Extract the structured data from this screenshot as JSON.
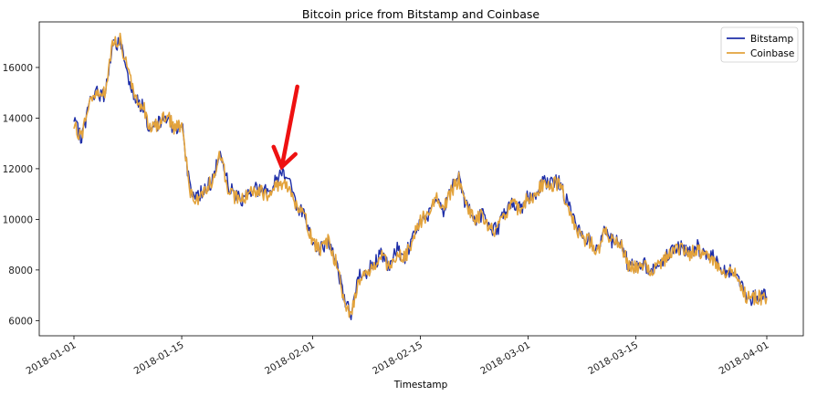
{
  "chart_data": {
    "type": "line",
    "title": "Bitcoin price from Bitstamp and Coinbase",
    "xlabel": "Timestamp",
    "ylabel": "",
    "xlim": [
      "2018-01-01",
      "2018-04-01"
    ],
    "ylim": [
      5400,
      17800
    ],
    "y_ticks": [
      6000,
      8000,
      10000,
      12000,
      14000,
      16000
    ],
    "x_ticks": [
      "2018-01-01",
      "2018-01-15",
      "2018-02-01",
      "2018-02-15",
      "2018-03-01",
      "2018-03-15",
      "2018-04-01"
    ],
    "grid": false,
    "legend_position": "top-right",
    "annotation": {
      "type": "arrow",
      "color": "#ee1111",
      "points_to": {
        "x": "2018-01-28",
        "y": 12000
      }
    },
    "series": [
      {
        "name": "Bitstamp",
        "color": "#1f2fa8",
        "points": [
          [
            "2018-01-01",
            13800
          ],
          [
            "2018-01-02",
            13200
          ],
          [
            "2018-01-03",
            14600
          ],
          [
            "2018-01-04",
            15000
          ],
          [
            "2018-01-05",
            14900
          ],
          [
            "2018-01-06",
            16800
          ],
          [
            "2018-01-07",
            17050
          ],
          [
            "2018-01-08",
            15700
          ],
          [
            "2018-01-09",
            14800
          ],
          [
            "2018-01-10",
            14400
          ],
          [
            "2018-01-11",
            13400
          ],
          [
            "2018-01-12",
            13800
          ],
          [
            "2018-01-13",
            14100
          ],
          [
            "2018-01-14",
            13600
          ],
          [
            "2018-01-15",
            13800
          ],
          [
            "2018-01-16",
            11300
          ],
          [
            "2018-01-17",
            10800
          ],
          [
            "2018-01-18",
            11300
          ],
          [
            "2018-01-19",
            11500
          ],
          [
            "2018-01-20",
            12700
          ],
          [
            "2018-01-21",
            11400
          ],
          [
            "2018-01-22",
            10900
          ],
          [
            "2018-01-23",
            10800
          ],
          [
            "2018-01-24",
            11200
          ],
          [
            "2018-01-25",
            11200
          ],
          [
            "2018-01-26",
            11100
          ],
          [
            "2018-01-27",
            11400
          ],
          [
            "2018-01-28",
            11900
          ],
          [
            "2018-01-29",
            11600
          ],
          [
            "2018-01-30",
            10500
          ],
          [
            "2018-01-31",
            10150
          ],
          [
            "2018-02-01",
            9200
          ],
          [
            "2018-02-02",
            8800
          ],
          [
            "2018-02-03",
            9200
          ],
          [
            "2018-02-04",
            8400
          ],
          [
            "2018-02-05",
            7000
          ],
          [
            "2018-02-06",
            6200
          ],
          [
            "2018-02-07",
            7700
          ],
          [
            "2018-02-08",
            7900
          ],
          [
            "2018-02-09",
            8300
          ],
          [
            "2018-02-10",
            8600
          ],
          [
            "2018-02-11",
            8100
          ],
          [
            "2018-02-12",
            8800
          ],
          [
            "2018-02-13",
            8500
          ],
          [
            "2018-02-14",
            9300
          ],
          [
            "2018-02-15",
            10000
          ],
          [
            "2018-02-16",
            10200
          ],
          [
            "2018-02-17",
            11000
          ],
          [
            "2018-02-18",
            10400
          ],
          [
            "2018-02-19",
            11200
          ],
          [
            "2018-02-20",
            11600
          ],
          [
            "2018-02-21",
            10500
          ],
          [
            "2018-02-22",
            10000
          ],
          [
            "2018-02-23",
            10200
          ],
          [
            "2018-02-24",
            9700
          ],
          [
            "2018-02-25",
            9600
          ],
          [
            "2018-02-26",
            10300
          ],
          [
            "2018-02-27",
            10700
          ],
          [
            "2018-02-28",
            10400
          ],
          [
            "2018-03-01",
            10900
          ],
          [
            "2018-03-02",
            11000
          ],
          [
            "2018-03-03",
            11500
          ],
          [
            "2018-03-04",
            11400
          ],
          [
            "2018-03-05",
            11500
          ],
          [
            "2018-03-06",
            10700
          ],
          [
            "2018-03-07",
            9900
          ],
          [
            "2018-03-08",
            9300
          ],
          [
            "2018-03-09",
            9200
          ],
          [
            "2018-03-10",
            8800
          ],
          [
            "2018-03-11",
            9600
          ],
          [
            "2018-03-12",
            9100
          ],
          [
            "2018-03-13",
            9100
          ],
          [
            "2018-03-14",
            8200
          ],
          [
            "2018-03-15",
            8200
          ],
          [
            "2018-03-16",
            8300
          ],
          [
            "2018-03-17",
            7900
          ],
          [
            "2018-03-18",
            8200
          ],
          [
            "2018-03-19",
            8600
          ],
          [
            "2018-03-20",
            8900
          ],
          [
            "2018-03-21",
            8900
          ],
          [
            "2018-03-22",
            8700
          ],
          [
            "2018-03-23",
            8900
          ],
          [
            "2018-03-24",
            8600
          ],
          [
            "2018-03-25",
            8500
          ],
          [
            "2018-03-26",
            8100
          ],
          [
            "2018-03-27",
            7900
          ],
          [
            "2018-03-28",
            7950
          ],
          [
            "2018-03-29",
            7100
          ],
          [
            "2018-03-30",
            6900
          ],
          [
            "2018-03-31",
            6950
          ],
          [
            "2018-04-01",
            6950
          ]
        ]
      },
      {
        "name": "Coinbase",
        "color": "#e3a33c",
        "points": [
          [
            "2018-01-01",
            13700
          ],
          [
            "2018-01-02",
            13250
          ],
          [
            "2018-01-03",
            14700
          ],
          [
            "2018-01-04",
            15050
          ],
          [
            "2018-01-05",
            15000
          ],
          [
            "2018-01-06",
            16900
          ],
          [
            "2018-01-07",
            17100
          ],
          [
            "2018-01-08",
            15800
          ],
          [
            "2018-01-09",
            14850
          ],
          [
            "2018-01-10",
            14450
          ],
          [
            "2018-01-11",
            13450
          ],
          [
            "2018-01-12",
            13850
          ],
          [
            "2018-01-13",
            14150
          ],
          [
            "2018-01-14",
            13650
          ],
          [
            "2018-01-15",
            13700
          ],
          [
            "2018-01-16",
            11200
          ],
          [
            "2018-01-17",
            10700
          ],
          [
            "2018-01-18",
            11250
          ],
          [
            "2018-01-19",
            11450
          ],
          [
            "2018-01-20",
            12600
          ],
          [
            "2018-01-21",
            11300
          ],
          [
            "2018-01-22",
            10850
          ],
          [
            "2018-01-23",
            10750
          ],
          [
            "2018-01-24",
            11150
          ],
          [
            "2018-01-25",
            11100
          ],
          [
            "2018-01-26",
            11000
          ],
          [
            "2018-01-27",
            11300
          ],
          [
            "2018-01-28",
            11450
          ],
          [
            "2018-01-29",
            11350
          ],
          [
            "2018-01-30",
            10400
          ],
          [
            "2018-01-31",
            10050
          ],
          [
            "2018-02-01",
            9150
          ],
          [
            "2018-02-02",
            8750
          ],
          [
            "2018-02-03",
            9150
          ],
          [
            "2018-02-04",
            8350
          ],
          [
            "2018-02-05",
            6900
          ],
          [
            "2018-02-06",
            6100
          ],
          [
            "2018-02-07",
            7650
          ],
          [
            "2018-02-08",
            7850
          ],
          [
            "2018-02-09",
            8250
          ],
          [
            "2018-02-10",
            8550
          ],
          [
            "2018-02-11",
            8050
          ],
          [
            "2018-02-12",
            8750
          ],
          [
            "2018-02-13",
            8450
          ],
          [
            "2018-02-14",
            9250
          ],
          [
            "2018-02-15",
            9950
          ],
          [
            "2018-02-16",
            10150
          ],
          [
            "2018-02-17",
            10950
          ],
          [
            "2018-02-18",
            10350
          ],
          [
            "2018-02-19",
            11150
          ],
          [
            "2018-02-20",
            11550
          ],
          [
            "2018-02-21",
            10450
          ],
          [
            "2018-02-22",
            9950
          ],
          [
            "2018-02-23",
            10150
          ],
          [
            "2018-02-24",
            9650
          ],
          [
            "2018-02-25",
            9550
          ],
          [
            "2018-02-26",
            10250
          ],
          [
            "2018-02-27",
            10650
          ],
          [
            "2018-02-28",
            10350
          ],
          [
            "2018-03-01",
            10850
          ],
          [
            "2018-03-02",
            10950
          ],
          [
            "2018-03-03",
            11450
          ],
          [
            "2018-03-04",
            11350
          ],
          [
            "2018-03-05",
            11450
          ],
          [
            "2018-03-06",
            10650
          ],
          [
            "2018-03-07",
            9850
          ],
          [
            "2018-03-08",
            9250
          ],
          [
            "2018-03-09",
            9150
          ],
          [
            "2018-03-10",
            8750
          ],
          [
            "2018-03-11",
            9550
          ],
          [
            "2018-03-12",
            9050
          ],
          [
            "2018-03-13",
            9050
          ],
          [
            "2018-03-14",
            8150
          ],
          [
            "2018-03-15",
            8150
          ],
          [
            "2018-03-16",
            8250
          ],
          [
            "2018-03-17",
            7850
          ],
          [
            "2018-03-18",
            8150
          ],
          [
            "2018-03-19",
            8550
          ],
          [
            "2018-03-20",
            8850
          ],
          [
            "2018-03-21",
            8850
          ],
          [
            "2018-03-22",
            8650
          ],
          [
            "2018-03-23",
            8850
          ],
          [
            "2018-03-24",
            8550
          ],
          [
            "2018-03-25",
            8450
          ],
          [
            "2018-03-26",
            8050
          ],
          [
            "2018-03-27",
            7850
          ],
          [
            "2018-03-28",
            7900
          ],
          [
            "2018-03-29",
            7050
          ],
          [
            "2018-03-30",
            6850
          ],
          [
            "2018-03-31",
            6900
          ],
          [
            "2018-04-01",
            6900
          ]
        ]
      }
    ]
  }
}
